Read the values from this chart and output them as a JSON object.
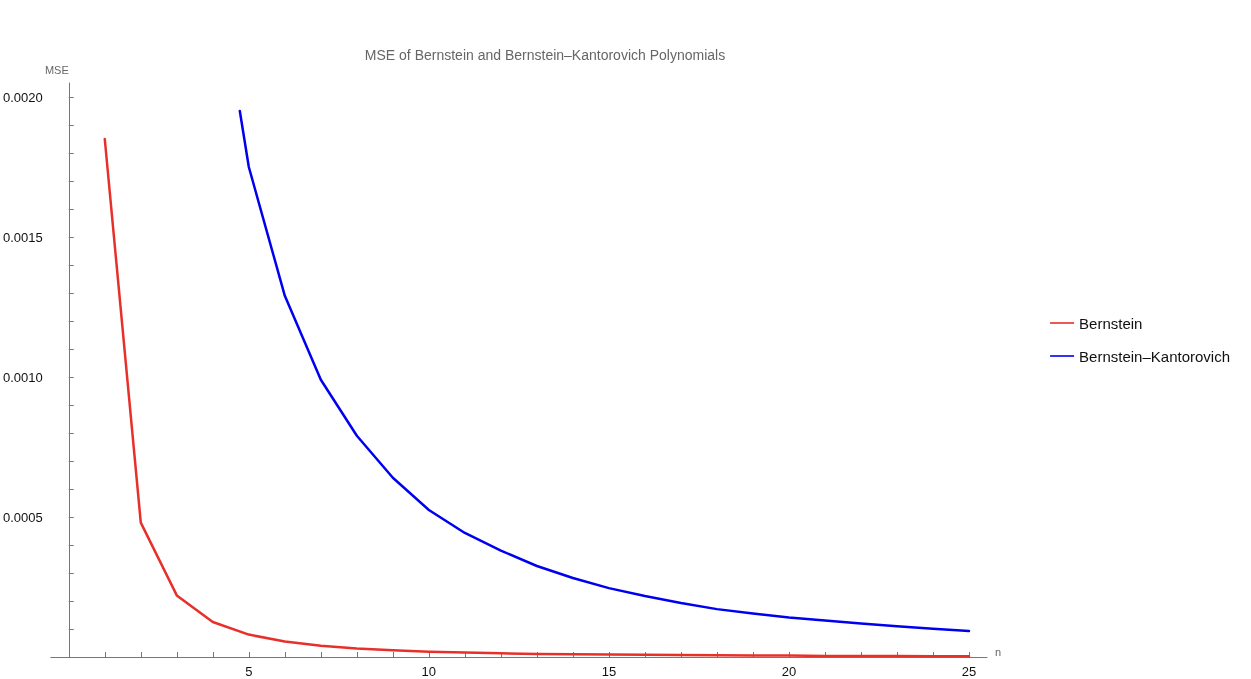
{
  "chart_data": {
    "type": "line",
    "title": "MSE of Bernstein and Bernstein–Kantorovich Polynomials",
    "xlabel": "n",
    "ylabel": "MSE",
    "xlim": [
      -0.5,
      25.5
    ],
    "ylim": [
      0,
      0.00205
    ],
    "xticks": [
      {
        "value": 1,
        "label": null
      },
      {
        "value": 2,
        "label": null
      },
      {
        "value": 3,
        "label": null
      },
      {
        "value": 4,
        "label": null
      },
      5,
      {
        "value": 6,
        "label": null
      },
      {
        "value": 7,
        "label": null
      },
      {
        "value": 8,
        "label": null
      },
      {
        "value": 9,
        "label": null
      },
      10,
      {
        "value": 11,
        "label": null
      },
      {
        "value": 12,
        "label": null
      },
      {
        "value": 13,
        "label": null
      },
      {
        "value": 14,
        "label": null
      },
      15,
      {
        "value": 16,
        "label": null
      },
      {
        "value": 17,
        "label": null
      },
      {
        "value": 18,
        "label": null
      },
      {
        "value": 19,
        "label": null
      },
      20,
      {
        "value": 21,
        "label": null
      },
      {
        "value": 22,
        "label": null
      },
      {
        "value": 23,
        "label": null
      },
      {
        "value": 24,
        "label": null
      },
      25
    ],
    "yticks": [
      {
        "value": 0.0001,
        "label": null
      },
      {
        "value": 0.0002,
        "label": null
      },
      {
        "value": 0.0003,
        "label": null
      },
      {
        "value": 0.0004,
        "label": null
      },
      {
        "value": 0.0005,
        "label": "0.0005"
      },
      {
        "value": 0.0006,
        "label": null
      },
      {
        "value": 0.0007,
        "label": null
      },
      {
        "value": 0.0008,
        "label": null
      },
      {
        "value": 0.0009,
        "label": null
      },
      {
        "value": 0.001,
        "label": "0.0010"
      },
      {
        "value": 0.0011,
        "label": null
      },
      {
        "value": 0.0012,
        "label": null
      },
      {
        "value": 0.0013,
        "label": null
      },
      {
        "value": 0.0014,
        "label": null
      },
      {
        "value": 0.0015,
        "label": "0.0015"
      },
      {
        "value": 0.0016,
        "label": null
      },
      {
        "value": 0.0017,
        "label": null
      },
      {
        "value": 0.0018,
        "label": null
      },
      {
        "value": 0.0019,
        "label": null
      },
      {
        "value": 0.002,
        "label": "0.0020"
      }
    ],
    "grid": false,
    "legend": "right",
    "marker": "none",
    "line_style": "solid",
    "series": [
      {
        "name": "Bernstein",
        "color": "#e8302a",
        "x": [
          1,
          2,
          3,
          4,
          5,
          6,
          7,
          8,
          9,
          10,
          11,
          12,
          13,
          14,
          15,
          16,
          17,
          18,
          19,
          20,
          21,
          22,
          23,
          24,
          25
        ],
        "values": [
          0.00185,
          0.00048,
          0.00022,
          0.000125,
          8e-05,
          5.5e-05,
          4e-05,
          3e-05,
          2.4e-05,
          1.9e-05,
          1.6e-05,
          1.3e-05,
          1.1e-05,
          1e-05,
          9e-06,
          8e-06,
          7e-06,
          6e-06,
          5e-06,
          5e-06,
          4e-06,
          4e-06,
          4e-06,
          3e-06,
          3e-06
        ]
      },
      {
        "name": "Bernstein–Kantorovich",
        "color": "#0000f0",
        "x": [
          4.75,
          5,
          6,
          7,
          8,
          9,
          10,
          11,
          12,
          13,
          14,
          15,
          16,
          17,
          18,
          19,
          20,
          21,
          22,
          23,
          24,
          25
        ],
        "values": [
          0.00195,
          0.00175,
          0.00129,
          0.00099,
          0.00079,
          0.00064,
          0.000525,
          0.000443,
          0.00038,
          0.000325,
          0.000282,
          0.000246,
          0.000218,
          0.000193,
          0.000171,
          0.000155,
          0.000141,
          0.00013,
          0.00012,
          0.00011,
          0.000101,
          9.3e-05
        ]
      }
    ]
  }
}
